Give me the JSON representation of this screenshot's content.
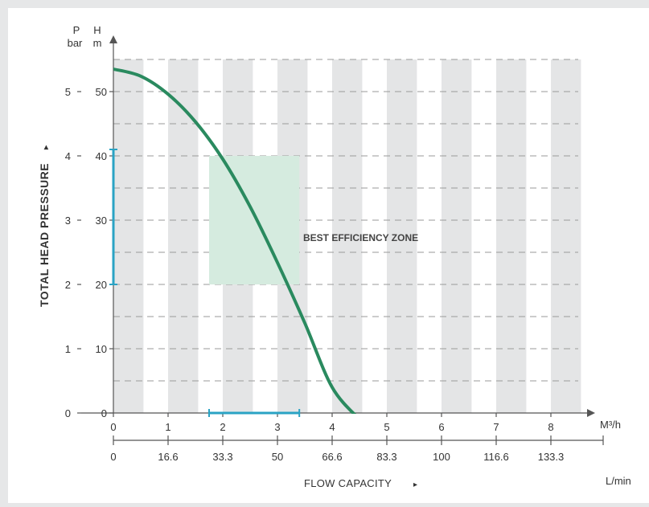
{
  "chart_data": {
    "type": "line",
    "y_title": "TOTAL HEAD PRESSURE",
    "x_title": "FLOW CAPACITY",
    "y_unit_bar_letter": "P",
    "y_unit_bar": "bar",
    "y_unit_m_letter": "H",
    "y_unit_m": "m",
    "x_unit_m3h": "M³/h",
    "x_unit_lmin": "L/min",
    "arrow_glyph": "▸",
    "y_ticks_bar": [
      "0",
      "1",
      "2",
      "3",
      "4",
      "5"
    ],
    "y_ticks_m": [
      "0",
      "10",
      "20",
      "30",
      "40",
      "50"
    ],
    "x_ticks_m3h": [
      "0",
      "1",
      "2",
      "3",
      "4",
      "5",
      "6",
      "7",
      "8"
    ],
    "x_ticks_lmin": [
      "0",
      "16.6",
      "33.3",
      "50",
      "66.6",
      "83.3",
      "100",
      "116.6",
      "133.3"
    ],
    "xlim": [
      0,
      9
    ],
    "ylim_m": [
      0,
      55
    ],
    "grid": true,
    "series": [
      {
        "color": "#2a8a5f",
        "x": [
          0,
          0.5,
          1.0,
          1.5,
          2.0,
          2.5,
          3.0,
          3.5,
          4.0,
          4.5
        ],
        "y": [
          53.5,
          52.4,
          49.6,
          45.3,
          39.5,
          32.1,
          23.4,
          14.0,
          4.0,
          -1.0
        ]
      }
    ],
    "best_efficiency_zone": {
      "label": "BEST EFFICIENCY ZONE",
      "x_range": [
        1.75,
        3.4
      ],
      "y_range_m": [
        20,
        40
      ],
      "color": "#d5ebdf"
    },
    "operating_range_x": {
      "range": [
        1.75,
        3.4
      ],
      "color": "#2aa3c4"
    },
    "operating_range_y": {
      "range_m": [
        20,
        41
      ],
      "color": "#2aa3c4"
    }
  }
}
